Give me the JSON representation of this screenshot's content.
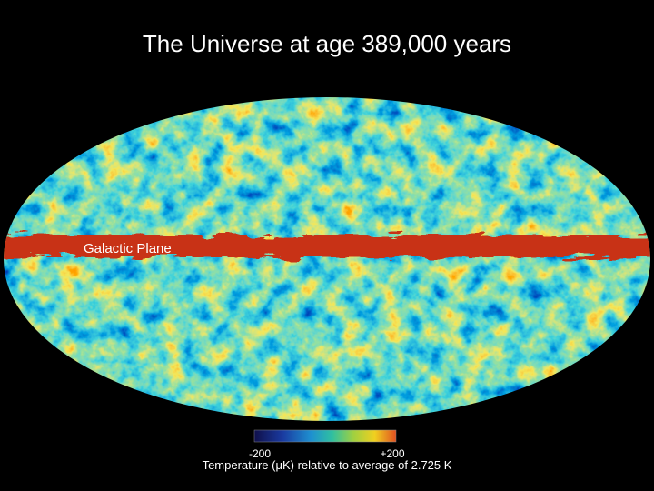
{
  "title": "The Universe at age 389,000 years",
  "map": {
    "label": "Galactic Plane"
  },
  "colorbar": {
    "min_label": "-200",
    "max_label": "+200",
    "caption": "Temperature (μK) relative to average of 2.725 K"
  }
}
